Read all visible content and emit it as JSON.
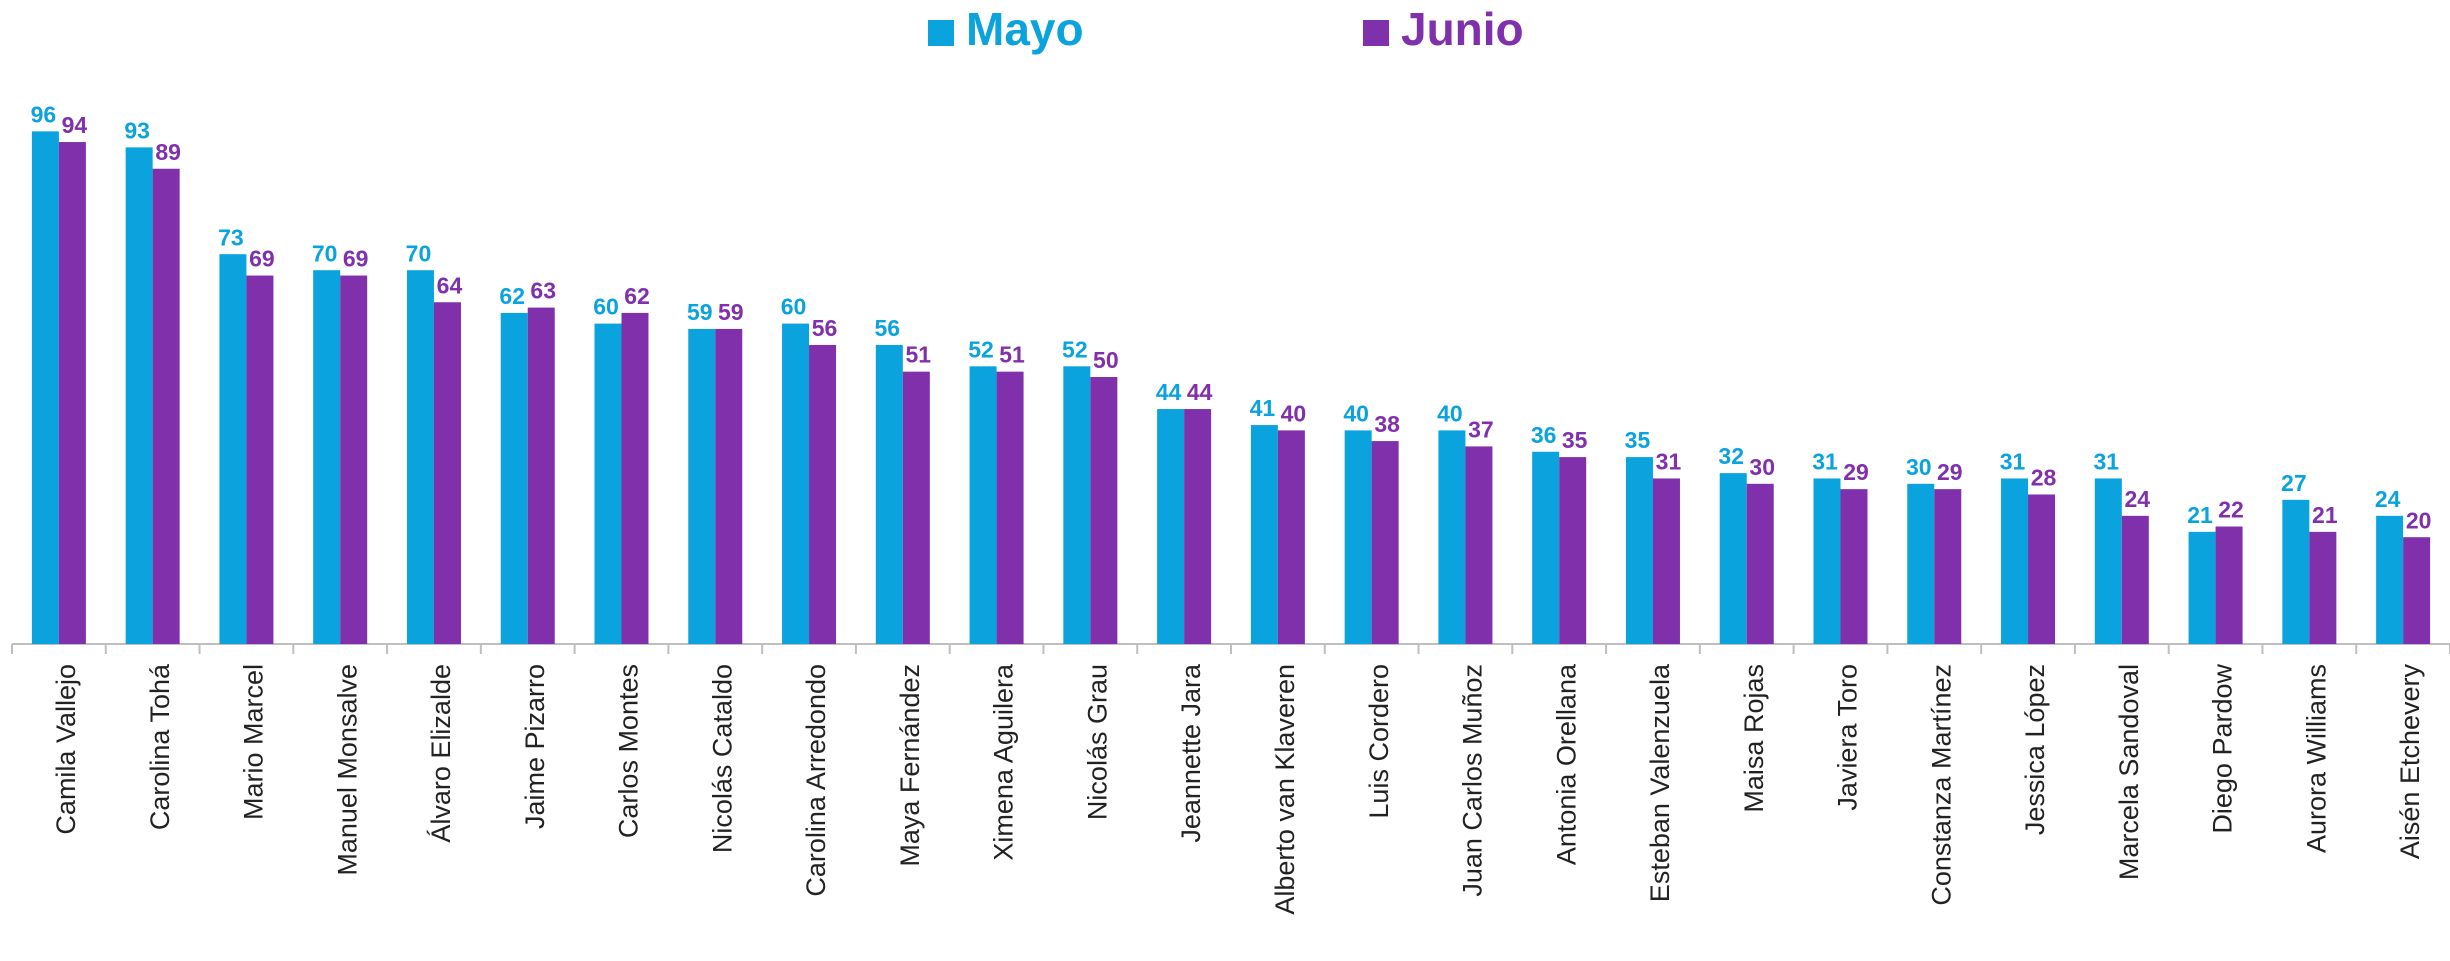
{
  "chart_data": {
    "type": "bar",
    "categories": [
      "Camila Vallejo",
      "Carolina Tohá",
      "Mario Marcel",
      "Manuel Monsalve",
      "Álvaro Elizalde",
      "Jaime Pizarro",
      "Carlos Montes",
      "Nicolás Cataldo",
      "Carolina Arredondo",
      "Maya Fernández",
      "Ximena Aguilera",
      "Nicolás Grau",
      "Jeannette Jara",
      "Alberto van Klaveren",
      "Luis Cordero",
      "Juan Carlos Muñoz",
      "Antonia Orellana",
      "Esteban Valenzuela",
      "Maisa Rojas",
      "Javiera Toro",
      "Constanza Martínez",
      "Jessica López",
      "Marcela Sandoval",
      "Diego Pardow",
      "Aurora Williams",
      "Aisén Etchevery"
    ],
    "series": [
      {
        "name": "Mayo",
        "color": "#0aa3de",
        "values": [
          96,
          93,
          73,
          70,
          70,
          62,
          60,
          59,
          60,
          56,
          52,
          52,
          44,
          41,
          40,
          40,
          36,
          35,
          32,
          31,
          30,
          31,
          31,
          21,
          27,
          24
        ]
      },
      {
        "name": "Junio",
        "color": "#8030aa",
        "values": [
          94,
          89,
          69,
          69,
          64,
          63,
          62,
          59,
          56,
          51,
          51,
          50,
          44,
          40,
          38,
          37,
          35,
          31,
          30,
          29,
          29,
          28,
          24,
          22,
          21,
          20
        ]
      }
    ],
    "ylim": [
      0,
      100
    ],
    "legend": "top"
  }
}
